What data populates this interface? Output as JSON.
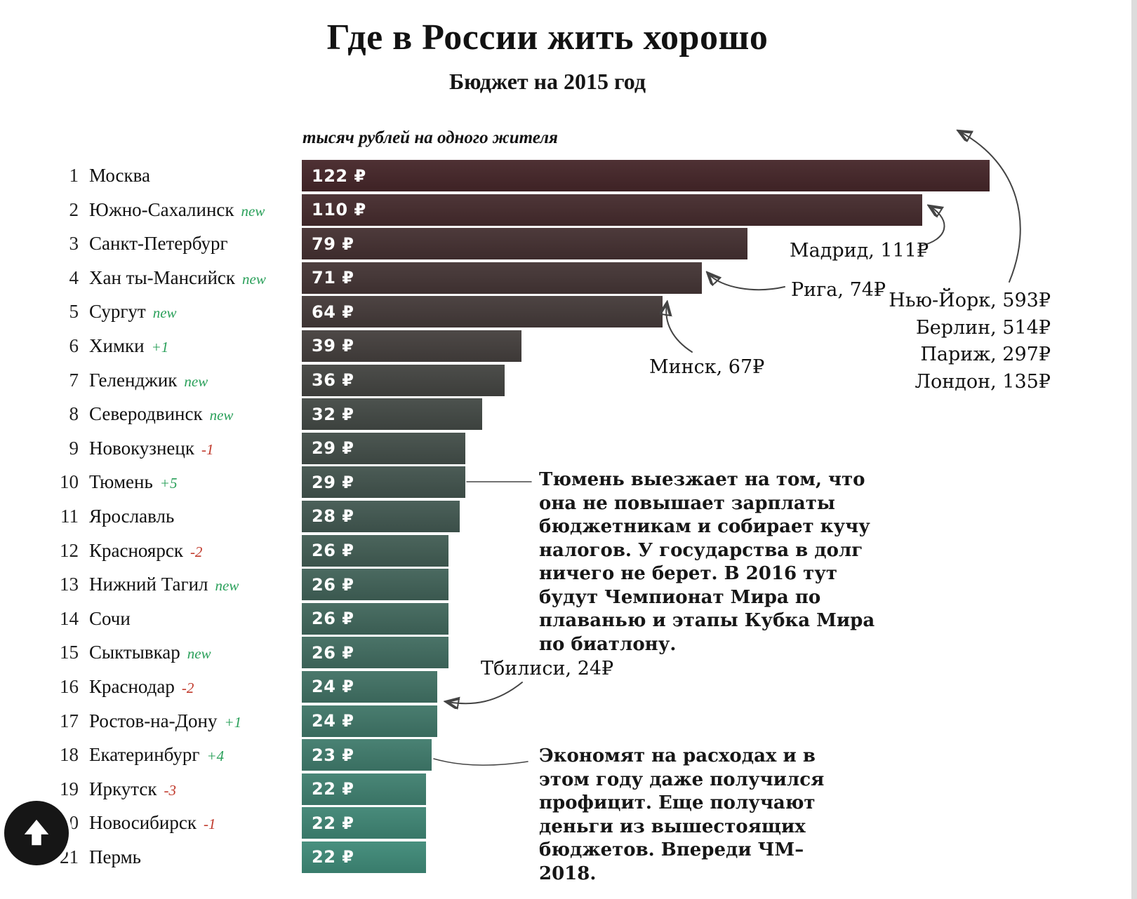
{
  "page": {
    "title": "Где в России жить хорошо",
    "subtitle": "Бюджет на 2015 год",
    "axis_note": "тысяч рублей на одного жителя"
  },
  "chart_data": {
    "type": "bar",
    "orientation": "horizontal",
    "title": "Где в России жить хорошо",
    "subtitle": "Бюджет на 2015 год",
    "xlabel": "тысяч рублей на одного жителя",
    "value_suffix": "₽",
    "max_value": 122,
    "bar_color_top": "#452629",
    "bar_color_bottom": "#3f8a78",
    "rows": [
      {
        "rank": 1,
        "city": "Москва",
        "change": "",
        "change_type": "none",
        "value": 122
      },
      {
        "rank": 2,
        "city": "Южно-Сахалинск",
        "change": "new",
        "change_type": "new",
        "value": 110
      },
      {
        "rank": 3,
        "city": "Санкт-Петербург",
        "change": "",
        "change_type": "none",
        "value": 79
      },
      {
        "rank": 4,
        "city": "Хан ты-Мансийск",
        "change": "new",
        "change_type": "new",
        "value": 71
      },
      {
        "rank": 5,
        "city": "Сургут",
        "change": "new",
        "change_type": "new",
        "value": 64
      },
      {
        "rank": 6,
        "city": "Химки",
        "change": "+1",
        "change_type": "up",
        "value": 39
      },
      {
        "rank": 7,
        "city": "Геленджик",
        "change": "new",
        "change_type": "new",
        "value": 36
      },
      {
        "rank": 8,
        "city": "Северодвинск",
        "change": "new",
        "change_type": "new",
        "value": 32
      },
      {
        "rank": 9,
        "city": "Новокузнецк",
        "change": "-1",
        "change_type": "down",
        "value": 29
      },
      {
        "rank": 10,
        "city": "Тюмень",
        "change": "+5",
        "change_type": "up",
        "value": 29
      },
      {
        "rank": 11,
        "city": "Ярославль",
        "change": "",
        "change_type": "none",
        "value": 28
      },
      {
        "rank": 12,
        "city": "Красноярск",
        "change": "-2",
        "change_type": "down",
        "value": 26
      },
      {
        "rank": 13,
        "city": "Нижний Тагил",
        "change": "new",
        "change_type": "new",
        "value": 26
      },
      {
        "rank": 14,
        "city": "Сочи",
        "change": "",
        "change_type": "none",
        "value": 26
      },
      {
        "rank": 15,
        "city": "Сыктывкар",
        "change": "new",
        "change_type": "new",
        "value": 26
      },
      {
        "rank": 16,
        "city": "Краснодар",
        "change": "-2",
        "change_type": "down",
        "value": 24
      },
      {
        "rank": 17,
        "city": "Ростов-на-Дону",
        "change": "+1",
        "change_type": "up",
        "value": 24
      },
      {
        "rank": 18,
        "city": "Екатеринбург",
        "change": "+4",
        "change_type": "up",
        "value": 23
      },
      {
        "rank": 19,
        "city": "Иркутск",
        "change": "-3",
        "change_type": "down",
        "value": 22
      },
      {
        "rank": 20,
        "city": "Новосибирск",
        "change": "-1",
        "change_type": "down",
        "value": 22
      },
      {
        "rank": 21,
        "city": "Пермь",
        "change": "",
        "change_type": "none",
        "value": 22
      }
    ],
    "annotations": {
      "madrid": "Мадрид, 111₽",
      "riga": "Рига, 74₽",
      "minsk": "Минск, 67₽",
      "tbilisi": "Тбилиси, 24₽",
      "foreign": [
        "Нью-Йорк, 593₽",
        "Берлин, 514₽",
        "Париж, 297₽",
        "Лондон, 135₽"
      ],
      "tyumen_note": "Тюмень выезжает на том, что она не повышает зарплаты бюджетникам и собирает кучу налогов. У государства в долг ничего не берет. В 2016 тут будут Чемпионат Мира по плаванью и этапы Кубка Мира по биатлону.",
      "ekb_note": "Экономят на расходах и в этом году даже получился профицит. Еще получают деньги из вышестоящих бюджетов. Впереди ЧМ–2018."
    }
  },
  "scroll_top": {
    "icon": "arrow-up"
  }
}
